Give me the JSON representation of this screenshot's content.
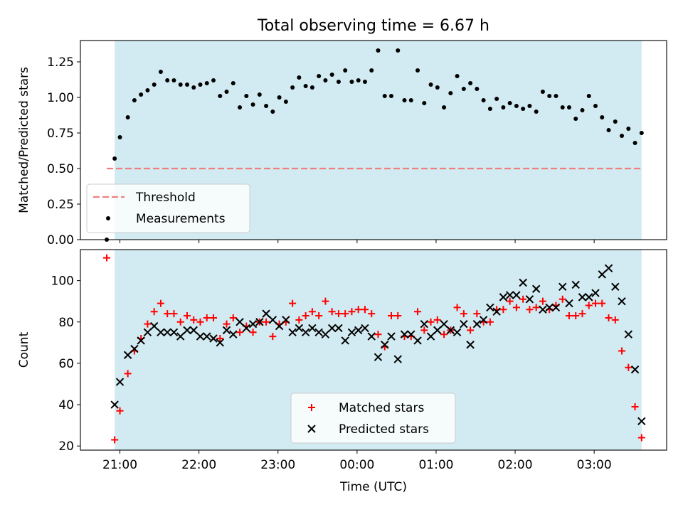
{
  "figure": {
    "title": "Total observing time = 6.67 h"
  },
  "chart_data": [
    {
      "type": "scatter",
      "ylabel": "Matched/Predicted stars",
      "xlim": [
        "20:30",
        "03:55"
      ],
      "ylim": [
        0,
        1.4
      ],
      "yticks": [
        "0.00",
        "0.25",
        "0.50",
        "0.75",
        "1.00",
        "1.25"
      ],
      "shaded_span": {
        "x0": "20:56",
        "x1": "03:36",
        "color": "#add8e6"
      },
      "threshold": {
        "label": "Threshold",
        "y": 0.5,
        "x0": "20:50",
        "x1": "03:36",
        "color": "#f08080",
        "style": "dashed"
      },
      "legend": {
        "placement": "lower-left",
        "entries": [
          "Threshold",
          "Measurements"
        ]
      },
      "series": [
        {
          "name": "Measurements",
          "marker": "dot",
          "color": "#000000",
          "x": [
            "20:50",
            "20:56",
            "21:00",
            "21:06",
            "21:11",
            "21:16",
            "21:21",
            "21:26",
            "21:31",
            "21:36",
            "21:41",
            "21:46",
            "21:51",
            "21:56",
            "22:01",
            "22:06",
            "22:11",
            "22:16",
            "22:21",
            "22:26",
            "22:31",
            "22:36",
            "22:41",
            "22:46",
            "22:51",
            "22:56",
            "23:01",
            "23:06",
            "23:11",
            "23:16",
            "23:21",
            "23:26",
            "23:31",
            "23:36",
            "23:41",
            "23:46",
            "23:51",
            "23:56",
            "00:01",
            "00:06",
            "00:11",
            "00:16",
            "00:21",
            "00:26",
            "00:31",
            "00:36",
            "00:41",
            "00:46",
            "00:51",
            "00:56",
            "01:01",
            "01:06",
            "01:11",
            "01:16",
            "01:21",
            "01:26",
            "01:31",
            "01:36",
            "01:41",
            "01:46",
            "01:51",
            "01:56",
            "02:01",
            "02:06",
            "02:11",
            "02:16",
            "02:21",
            "02:26",
            "02:31",
            "02:36",
            "02:41",
            "02:46",
            "02:51",
            "02:56",
            "03:01",
            "03:06",
            "03:11",
            "03:16",
            "03:21",
            "03:26",
            "03:31",
            "03:36"
          ],
          "y": [
            0.0,
            0.57,
            0.72,
            0.86,
            0.98,
            1.02,
            1.05,
            1.09,
            1.18,
            1.12,
            1.12,
            1.09,
            1.09,
            1.07,
            1.09,
            1.1,
            1.12,
            1.01,
            1.04,
            1.1,
            0.93,
            1.01,
            0.95,
            1.02,
            0.94,
            0.9,
            1.0,
            0.97,
            1.07,
            1.14,
            1.08,
            1.07,
            1.15,
            1.12,
            1.16,
            1.11,
            1.19,
            1.11,
            1.12,
            1.11,
            1.19,
            1.33,
            1.01,
            1.01,
            1.33,
            0.98,
            0.98,
            1.19,
            0.96,
            1.09,
            1.07,
            0.93,
            1.03,
            1.15,
            1.06,
            1.1,
            1.06,
            0.98,
            0.92,
            0.99,
            0.93,
            0.96,
            0.94,
            0.92,
            0.94,
            0.9,
            1.04,
            1.01,
            1.01,
            0.93,
            0.93,
            0.85,
            0.91,
            1.01,
            0.94,
            0.86,
            0.77,
            0.83,
            0.73,
            0.78,
            0.68,
            0.75
          ]
        }
      ]
    },
    {
      "type": "scatter",
      "xlabel": "Time (UTC)",
      "ylabel": "Count",
      "xlim": [
        "20:30",
        "03:55"
      ],
      "ylim": [
        18,
        115
      ],
      "xticks": [
        "21:00",
        "22:00",
        "23:00",
        "00:00",
        "01:00",
        "02:00",
        "03:00"
      ],
      "yticks": [
        "20",
        "40",
        "60",
        "80",
        "100"
      ],
      "shaded_span": {
        "x0": "20:56",
        "x1": "03:36",
        "color": "#add8e6"
      },
      "legend": {
        "placement": "lower-center",
        "entries": [
          "Matched stars",
          "Predicted stars"
        ]
      },
      "series": [
        {
          "name": "Matched stars",
          "marker": "plus",
          "color": "#ff0000",
          "x": [
            "20:50",
            "20:56",
            "21:00",
            "21:06",
            "21:11",
            "21:16",
            "21:21",
            "21:26",
            "21:31",
            "21:36",
            "21:41",
            "21:46",
            "21:51",
            "21:56",
            "22:01",
            "22:06",
            "22:11",
            "22:16",
            "22:21",
            "22:26",
            "22:31",
            "22:36",
            "22:41",
            "22:46",
            "22:51",
            "22:56",
            "23:01",
            "23:06",
            "23:11",
            "23:16",
            "23:21",
            "23:26",
            "23:31",
            "23:36",
            "23:41",
            "23:46",
            "23:51",
            "23:56",
            "00:01",
            "00:06",
            "00:11",
            "00:16",
            "00:21",
            "00:26",
            "00:31",
            "00:36",
            "00:41",
            "00:46",
            "00:51",
            "00:56",
            "01:01",
            "01:06",
            "01:11",
            "01:16",
            "01:21",
            "01:26",
            "01:31",
            "01:36",
            "01:41",
            "01:46",
            "01:51",
            "01:56",
            "02:01",
            "02:06",
            "02:11",
            "02:16",
            "02:21",
            "02:26",
            "02:31",
            "02:36",
            "02:41",
            "02:46",
            "02:51",
            "02:56",
            "03:01",
            "03:06",
            "03:11",
            "03:16",
            "03:21",
            "03:26",
            "03:31",
            "03:36"
          ],
          "y": [
            111,
            23,
            37,
            55,
            66,
            72,
            79,
            85,
            89,
            84,
            84,
            80,
            83,
            81,
            80,
            82,
            82,
            72,
            79,
            82,
            75,
            78,
            75,
            80,
            80,
            73,
            79,
            80,
            89,
            81,
            83,
            85,
            83,
            90,
            85,
            84,
            84,
            85,
            86,
            86,
            84,
            74,
            68,
            83,
            83,
            73,
            73,
            85,
            76,
            80,
            81,
            74,
            76,
            87,
            84,
            76,
            84,
            80,
            80,
            86,
            86,
            90,
            87,
            91,
            86,
            87,
            90,
            86,
            88,
            91,
            83,
            83,
            84,
            88,
            89,
            89,
            82,
            81,
            66,
            58,
            39,
            24
          ]
        },
        {
          "name": "Predicted stars",
          "marker": "x",
          "color": "#000000",
          "x": [
            "20:56",
            "21:00",
            "21:06",
            "21:11",
            "21:16",
            "21:21",
            "21:26",
            "21:31",
            "21:36",
            "21:41",
            "21:46",
            "21:51",
            "21:56",
            "22:01",
            "22:06",
            "22:11",
            "22:16",
            "22:21",
            "22:26",
            "22:31",
            "22:36",
            "22:41",
            "22:46",
            "22:51",
            "22:56",
            "23:01",
            "23:06",
            "23:11",
            "23:16",
            "23:21",
            "23:26",
            "23:31",
            "23:36",
            "23:41",
            "23:46",
            "23:51",
            "23:56",
            "00:01",
            "00:06",
            "00:11",
            "00:16",
            "00:21",
            "00:26",
            "00:31",
            "00:36",
            "00:41",
            "00:46",
            "00:51",
            "00:56",
            "01:01",
            "01:06",
            "01:11",
            "01:16",
            "01:21",
            "01:26",
            "01:31",
            "01:36",
            "01:41",
            "01:46",
            "01:51",
            "01:56",
            "02:01",
            "02:06",
            "02:11",
            "02:16",
            "02:21",
            "02:26",
            "02:31",
            "02:36",
            "02:41",
            "02:46",
            "02:51",
            "02:56",
            "03:01",
            "03:06",
            "03:11",
            "03:16",
            "03:21",
            "03:26",
            "03:31",
            "03:36"
          ],
          "y": [
            40,
            51,
            64,
            67,
            71,
            75,
            78,
            75,
            75,
            75,
            73,
            76,
            76,
            73,
            73,
            72,
            70,
            76,
            74,
            80,
            77,
            79,
            80,
            84,
            81,
            78,
            81,
            75,
            77,
            75,
            77,
            75,
            74,
            77,
            77,
            71,
            75,
            76,
            77,
            73,
            63,
            69,
            73,
            62,
            74,
            74,
            71,
            79,
            73,
            76,
            79,
            76,
            75,
            79,
            69,
            79,
            81,
            87,
            85,
            92,
            93,
            93,
            99,
            91,
            96,
            86,
            87,
            87,
            97,
            89,
            98,
            92,
            92,
            94,
            103,
            106,
            97,
            90,
            74,
            57,
            32
          ]
        }
      ]
    }
  ]
}
